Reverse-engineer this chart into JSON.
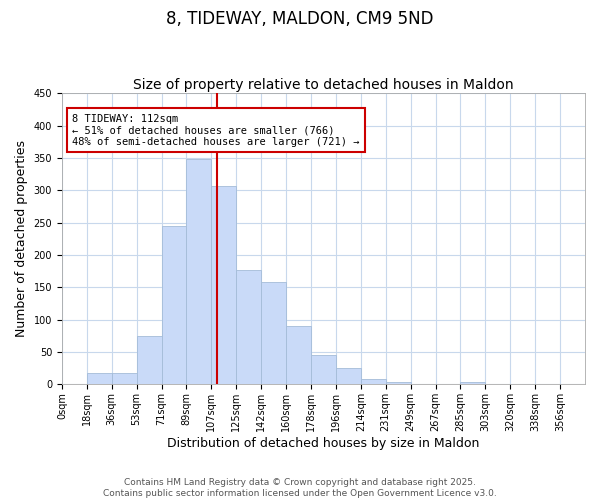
{
  "title": "8, TIDEWAY, MALDON, CM9 5ND",
  "subtitle": "Size of property relative to detached houses in Maldon",
  "xlabel": "Distribution of detached houses by size in Maldon",
  "ylabel": "Number of detached properties",
  "bar_labels": [
    "0sqm",
    "18sqm",
    "36sqm",
    "53sqm",
    "71sqm",
    "89sqm",
    "107sqm",
    "125sqm",
    "142sqm",
    "160sqm",
    "178sqm",
    "196sqm",
    "214sqm",
    "231sqm",
    "249sqm",
    "267sqm",
    "285sqm",
    "303sqm",
    "320sqm",
    "338sqm",
    "356sqm"
  ],
  "bar_values": [
    0,
    17,
    17,
    75,
    245,
    348,
    307,
    177,
    158,
    90,
    45,
    25,
    8,
    3,
    0,
    0,
    3,
    0,
    0,
    0,
    0
  ],
  "bar_color": "#c9daf8",
  "bar_edge_color": "#a4bcd8",
  "ylim": [
    0,
    450
  ],
  "yticks": [
    0,
    50,
    100,
    150,
    200,
    250,
    300,
    350,
    400,
    450
  ],
  "vline_x": 112,
  "vline_color": "#cc0000",
  "annotation_title": "8 TIDEWAY: 112sqm",
  "annotation_line1": "← 51% of detached houses are smaller (766)",
  "annotation_line2": "48% of semi-detached houses are larger (721) →",
  "annotation_box_color": "#ffffff",
  "annotation_box_edge_color": "#cc0000",
  "footer_line1": "Contains HM Land Registry data © Crown copyright and database right 2025.",
  "footer_line2": "Contains public sector information licensed under the Open Government Licence v3.0.",
  "background_color": "#ffffff",
  "grid_color": "#c8d8ec",
  "title_fontsize": 12,
  "subtitle_fontsize": 10,
  "axis_label_fontsize": 9,
  "tick_label_fontsize": 7,
  "footer_fontsize": 6.5,
  "bin_width": 18,
  "n_bars": 21
}
